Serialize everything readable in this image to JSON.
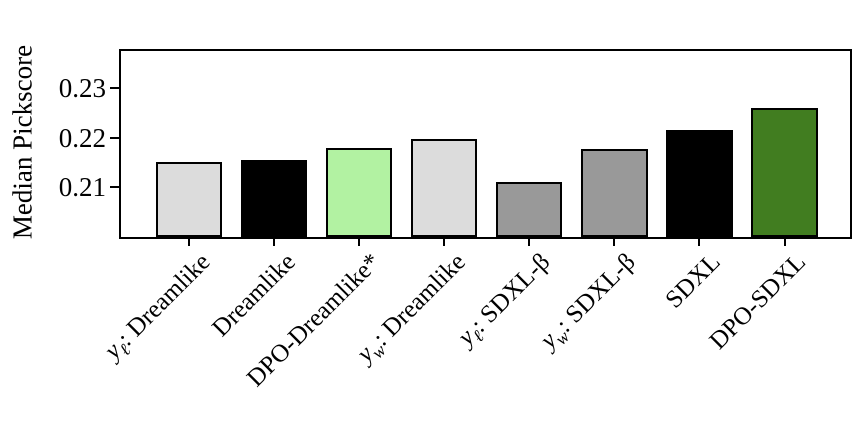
{
  "figure": {
    "background_color": "#ffffff",
    "text_color": "#000000"
  },
  "chart_data": {
    "type": "bar",
    "title": "",
    "xlabel": "",
    "ylabel": "Median Pickscore",
    "categories": [
      "y_{ℓ}: Dreamlike",
      "Dreamlike",
      "DPO-Dreamlike*",
      "y_{w}: Dreamlike",
      "y_{ℓ}: SDXL-β",
      "y_{w}: SDXL-β",
      "SDXL",
      "DPO-SDXL"
    ],
    "values": [
      0.2152,
      0.2155,
      0.2179,
      0.2198,
      0.2111,
      0.2178,
      0.2215,
      0.226
    ],
    "bar_colors": [
      "#dcdcdc",
      "#000000",
      "#b2f2a2",
      "#dcdcdc",
      "#999999",
      "#999999",
      "#000000",
      "#417d20"
    ],
    "bar_edge_color": "#000000",
    "ylim": [
      0.2,
      0.2375
    ],
    "ytick_labels": [
      "0.21",
      "0.22",
      "0.23"
    ],
    "ytick_values": [
      0.21,
      0.22,
      0.23
    ],
    "xticklabel_rotation_deg": 45,
    "grid": false,
    "legend_position": "none"
  }
}
